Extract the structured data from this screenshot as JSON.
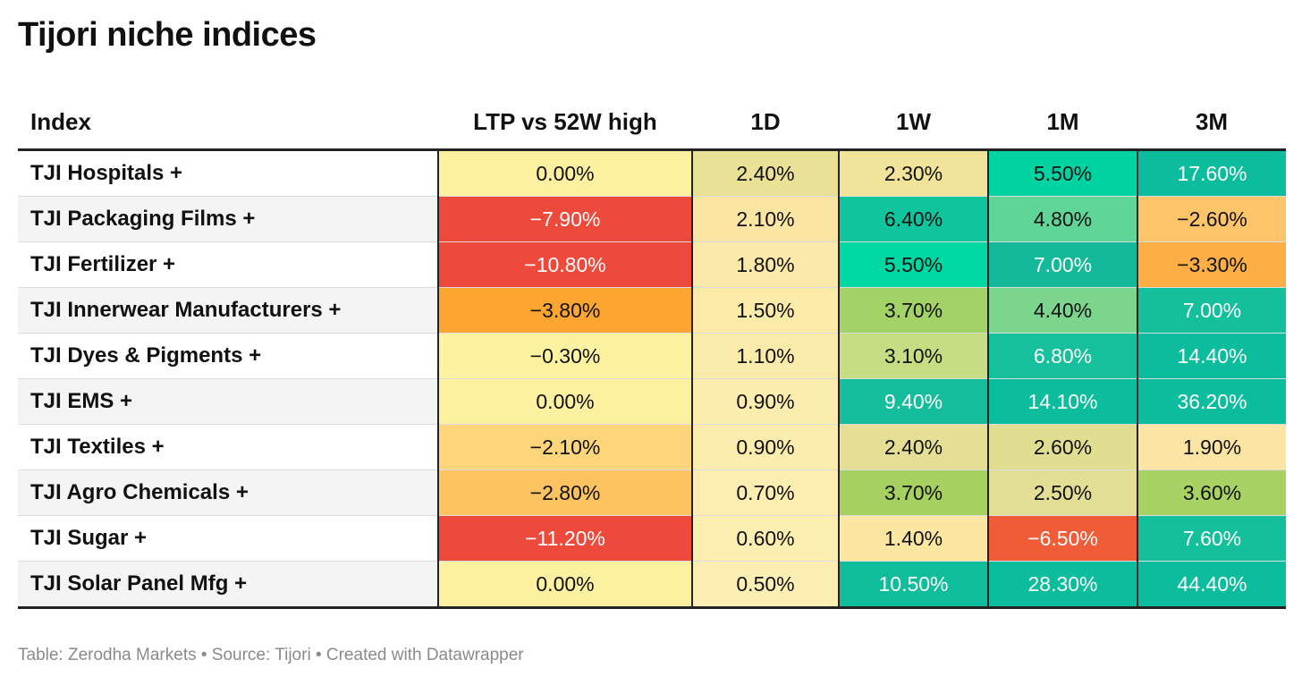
{
  "title": "Tijori niche indices",
  "footer": "Table: Zerodha Markets • Source: Tijori • Created with Datawrapper",
  "chart_data": {
    "type": "table",
    "columns": [
      "Index",
      "LTP vs 52W high",
      "1D",
      "1W",
      "1M",
      "3M"
    ],
    "rows": [
      {
        "index": "TJI Hospitals +",
        "values": [
          "0.00%",
          "2.40%",
          "2.30%",
          "5.50%",
          "17.60%"
        ],
        "colors": [
          "#fdf0a0",
          "#e8e196",
          "#f1e39a",
          "#00d3a2",
          "#0bbd9c"
        ],
        "text_colors": [
          "#111",
          "#111",
          "#111",
          "#111",
          "#fff"
        ]
      },
      {
        "index": "TJI Packaging Films +",
        "values": [
          "-7.90%",
          "2.10%",
          "6.40%",
          "4.80%",
          "-2.60%"
        ],
        "colors": [
          "#ee4a3c",
          "#fae5a2",
          "#10c49e",
          "#5fd698",
          "#fdc46a"
        ],
        "text_colors": [
          "#fff",
          "#111",
          "#111",
          "#111",
          "#111"
        ]
      },
      {
        "index": "TJI Fertilizer +",
        "values": [
          "-10.80%",
          "1.80%",
          "5.50%",
          "7.00%",
          "-3.30%"
        ],
        "colors": [
          "#ee4a3c",
          "#fae9a8",
          "#00d8a3",
          "#14b99a",
          "#fdae45"
        ],
        "text_colors": [
          "#fff",
          "#111",
          "#111",
          "#fff",
          "#111"
        ]
      },
      {
        "index": "TJI Innerwear Manufacturers +",
        "values": [
          "-3.80%",
          "1.50%",
          "3.70%",
          "4.40%",
          "7.00%"
        ],
        "colors": [
          "#fca631",
          "#fbeaa8",
          "#a3d266",
          "#7bd58c",
          "#14bf9c"
        ],
        "text_colors": [
          "#111",
          "#111",
          "#111",
          "#111",
          "#fff"
        ]
      },
      {
        "index": "TJI Dyes & Pigments +",
        "values": [
          "-0.30%",
          "1.10%",
          "3.10%",
          "6.80%",
          "14.40%"
        ],
        "colors": [
          "#fdf2a2",
          "#fbebab",
          "#c6dd84",
          "#16c09c",
          "#0bbd9c"
        ],
        "text_colors": [
          "#111",
          "#111",
          "#111",
          "#fff",
          "#fff"
        ]
      },
      {
        "index": "TJI EMS +",
        "values": [
          "0.00%",
          "0.90%",
          "9.40%",
          "14.10%",
          "36.20%"
        ],
        "colors": [
          "#fdf0a0",
          "#fcecae",
          "#14bd9c",
          "#0bbd9c",
          "#0bbd9c"
        ],
        "text_colors": [
          "#111",
          "#111",
          "#fff",
          "#fff",
          "#fff"
        ]
      },
      {
        "index": "TJI Textiles +",
        "values": [
          "-2.10%",
          "0.90%",
          "2.40%",
          "2.60%",
          "1.90%"
        ],
        "colors": [
          "#fdd57a",
          "#fcecae",
          "#e5df96",
          "#e1dd91",
          "#fce4a4"
        ],
        "text_colors": [
          "#111",
          "#111",
          "#111",
          "#111",
          "#111"
        ]
      },
      {
        "index": "TJI Agro Chemicals +",
        "values": [
          "-2.80%",
          "0.70%",
          "3.70%",
          "2.50%",
          "3.60%"
        ],
        "colors": [
          "#fcc360",
          "#fdedb0",
          "#a6d161",
          "#e2de95",
          "#a9d264"
        ],
        "text_colors": [
          "#111",
          "#111",
          "#111",
          "#111",
          "#111"
        ]
      },
      {
        "index": "TJI Sugar +",
        "values": [
          "-11.20%",
          "0.60%",
          "1.40%",
          "-6.50%",
          "7.60%"
        ],
        "colors": [
          "#ee4a3c",
          "#fdeeb1",
          "#fbe6a2",
          "#f05b38",
          "#14bf9c"
        ],
        "text_colors": [
          "#fff",
          "#111",
          "#111",
          "#fff",
          "#fff"
        ]
      },
      {
        "index": "TJI Solar Panel Mfg +",
        "values": [
          "0.00%",
          "0.50%",
          "10.50%",
          "28.30%",
          "44.40%"
        ],
        "colors": [
          "#fdf0a0",
          "#fdefb3",
          "#0fbd9c",
          "#0bbd9c",
          "#0bbd9c"
        ],
        "text_colors": [
          "#111",
          "#111",
          "#fff",
          "#fff",
          "#fff"
        ]
      }
    ]
  }
}
